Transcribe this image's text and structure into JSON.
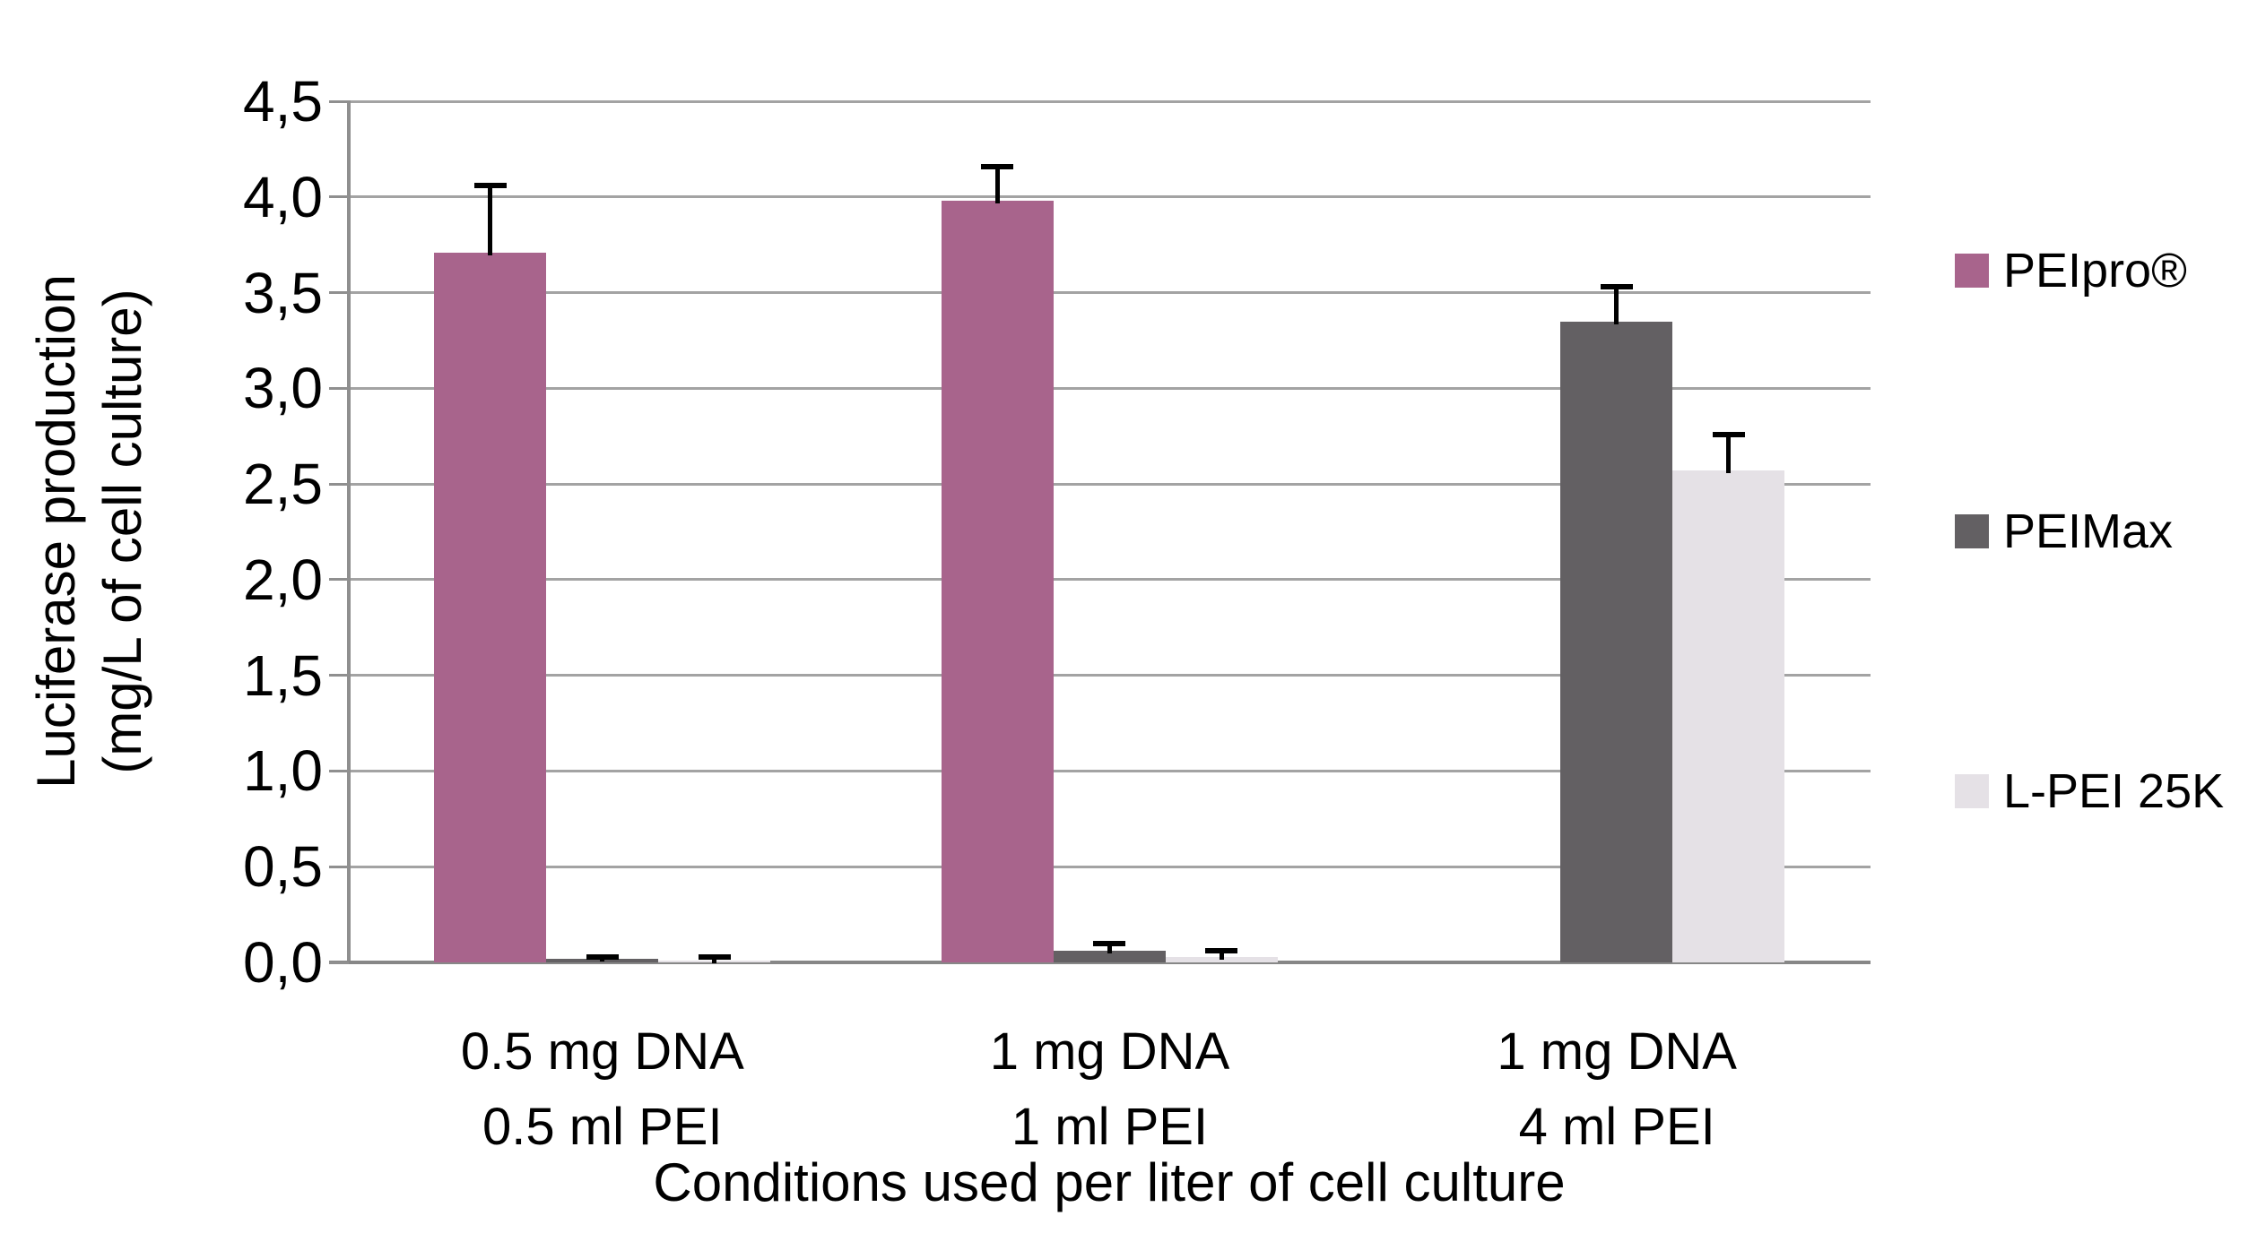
{
  "chart_data": {
    "type": "bar",
    "title": "",
    "xlabel": "Conditions used per liter of cell culture",
    "ylabel_lines": [
      "Luciferase production",
      "(mg/L of cell culture)"
    ],
    "categories": [
      [
        "0.5 mg DNA",
        "0.5 ml PEI"
      ],
      [
        "1 mg DNA",
        "1 ml PEI"
      ],
      [
        "1 mg DNA",
        "4 ml PEI"
      ]
    ],
    "series": [
      {
        "name": "PEIpro®",
        "color": "#a8648c",
        "values": [
          3.71,
          3.98,
          null
        ],
        "errors_up": [
          0.35,
          0.18,
          null
        ]
      },
      {
        "name": "PEIMax",
        "color": "#636063",
        "values": [
          0.02,
          0.06,
          3.35
        ],
        "errors_up": [
          0.01,
          0.04,
          0.18
        ]
      },
      {
        "name": "L-PEI 25K",
        "color": "#e5e1e6",
        "values": [
          0.01,
          0.03,
          2.57
        ],
        "errors_up": [
          0.02,
          0.03,
          0.19
        ]
      }
    ],
    "yticks": [
      "0,0",
      "0,5",
      "1,0",
      "1,5",
      "2,0",
      "2,5",
      "3,0",
      "3,5",
      "4,0",
      "4,5"
    ],
    "ylim": [
      0,
      4.5
    ],
    "ytick_step": 0.5,
    "decimal_separator": ",",
    "grid": true,
    "legend_position": "right",
    "gridline_color": "#a3a3a3",
    "axis_color": "#8f8f8f",
    "error_bar_color": "#000000"
  }
}
